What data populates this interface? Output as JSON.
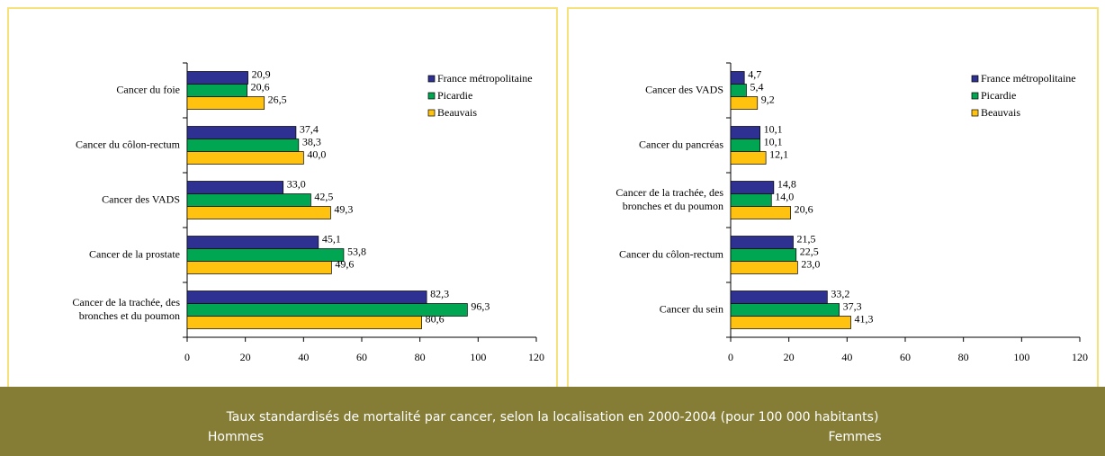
{
  "caption": "Taux standardisés de mortalité par cancer, selon la localisation en 2000-2004 (pour 100 000 habitants)",
  "chart_data": [
    {
      "type": "bar",
      "orientation": "horizontal",
      "subtitle": "Hommes",
      "categories": [
        "Cancer du foie",
        "Cancer du côlon-rectum",
        "Cancer des VADS",
        "Cancer de la prostate",
        "Cancer de la trachée, des\nbronches et du poumon"
      ],
      "series": [
        {
          "name": "France métropolitaine",
          "color": "#2e3192",
          "values": [
            20.9,
            37.4,
            33.0,
            45.1,
            82.3
          ],
          "value_labels": [
            "20,9",
            "37,4",
            "33,0",
            "45,1",
            "82,3"
          ]
        },
        {
          "name": "Picardie",
          "color": "#00a651",
          "values": [
            20.6,
            38.3,
            42.5,
            53.8,
            96.3
          ],
          "value_labels": [
            "20,6",
            "38,3",
            "42,5",
            "53,8",
            "96,3"
          ]
        },
        {
          "name": "Beauvais",
          "color": "#ffc20e",
          "values": [
            26.5,
            40.0,
            49.3,
            49.6,
            80.6
          ],
          "value_labels": [
            "26,5",
            "40,0",
            "49,3",
            "49,6",
            "80,6"
          ]
        }
      ],
      "xlim": [
        0,
        120
      ],
      "xticks": [
        0,
        20,
        40,
        60,
        80,
        100,
        120
      ],
      "legend": "upper right"
    },
    {
      "type": "bar",
      "orientation": "horizontal",
      "subtitle": "Femmes",
      "categories": [
        "Cancer des VADS",
        "Cancer du pancréas",
        "Cancer de la trachée, des\nbronches et du poumon",
        "Cancer du côlon-rectum",
        "Cancer du sein"
      ],
      "series": [
        {
          "name": "France métropolitaine",
          "color": "#2e3192",
          "values": [
            4.7,
            10.1,
            14.8,
            21.5,
            33.2
          ],
          "value_labels": [
            "4,7",
            "10,1",
            "14,8",
            "21,5",
            "33,2"
          ]
        },
        {
          "name": "Picardie",
          "color": "#00a651",
          "values": [
            5.4,
            10.1,
            14.0,
            22.5,
            37.3
          ],
          "value_labels": [
            "5,4",
            "10,1",
            "14,0",
            "22,5",
            "37,3"
          ]
        },
        {
          "name": "Beauvais",
          "color": "#ffc20e",
          "values": [
            9.2,
            12.1,
            20.6,
            23.0,
            41.3
          ],
          "value_labels": [
            "9,2",
            "12,1",
            "20,6",
            "23,0",
            "41,3"
          ]
        }
      ],
      "xlim": [
        0,
        120
      ],
      "xticks": [
        0,
        20,
        40,
        60,
        80,
        100,
        120
      ],
      "legend": "upper right"
    }
  ]
}
